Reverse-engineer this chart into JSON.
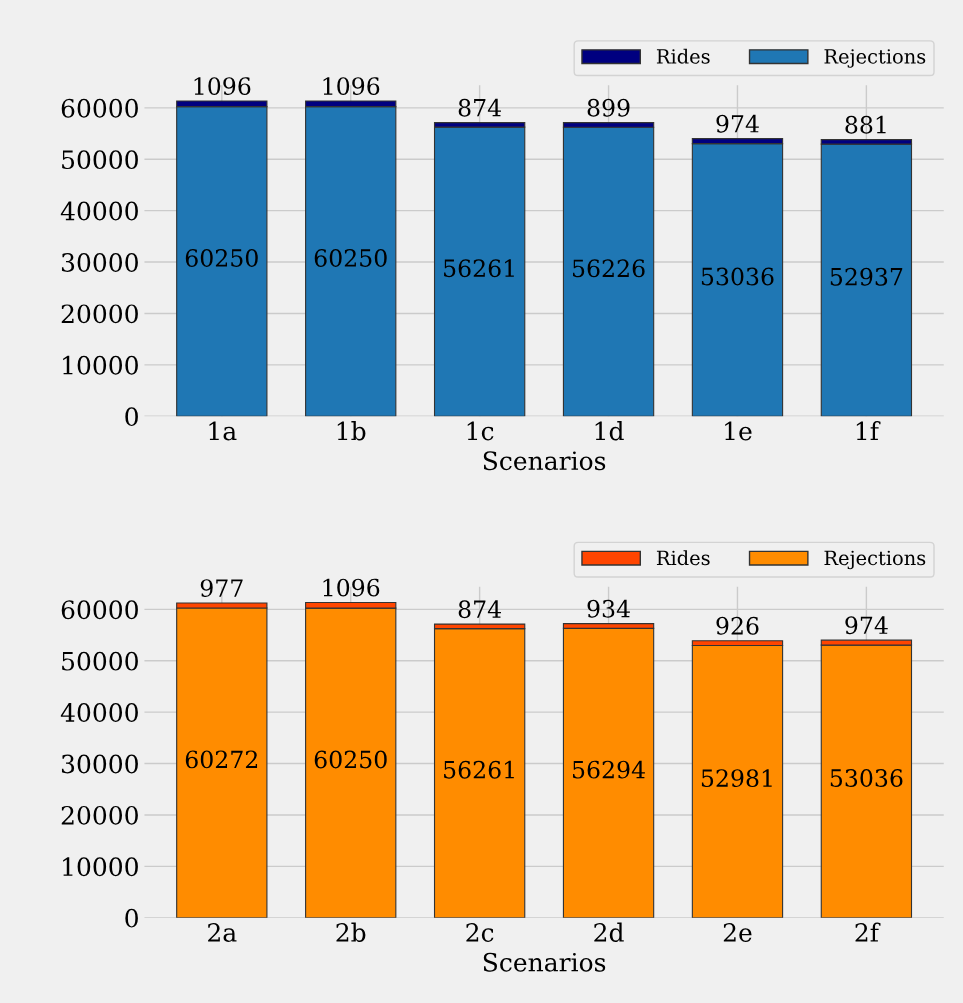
{
  "chart_data": [
    {
      "type": "bar",
      "stacked": true,
      "xlabel": "Scenarios",
      "categories": [
        "1a",
        "1b",
        "1c",
        "1d",
        "1e",
        "1f"
      ],
      "series": [
        {
          "name": "Rejections",
          "color": "#1f77b4",
          "values": [
            60250,
            60250,
            56261,
            56226,
            53036,
            52937
          ]
        },
        {
          "name": "Rides",
          "color": "#000080",
          "values": [
            1096,
            1096,
            874,
            899,
            974,
            881
          ]
        }
      ],
      "ylim": [
        0,
        64400
      ],
      "yticks": [
        0,
        10000,
        20000,
        30000,
        40000,
        50000,
        60000
      ],
      "grid": true,
      "legend": "top right",
      "data_labels": true
    },
    {
      "type": "bar",
      "stacked": true,
      "xlabel": "Scenarios",
      "categories": [
        "2a",
        "2b",
        "2c",
        "2d",
        "2e",
        "2f"
      ],
      "series": [
        {
          "name": "Rejections",
          "color": "#ff8c00",
          "values": [
            60272,
            60250,
            56261,
            56294,
            52981,
            53036
          ]
        },
        {
          "name": "Rides",
          "color": "#ff4500",
          "values": [
            977,
            1096,
            874,
            934,
            926,
            974
          ]
        }
      ],
      "ylim": [
        0,
        64400
      ],
      "yticks": [
        0,
        10000,
        20000,
        30000,
        40000,
        50000,
        60000
      ],
      "grid": true,
      "legend": "top right",
      "data_labels": true
    }
  ]
}
